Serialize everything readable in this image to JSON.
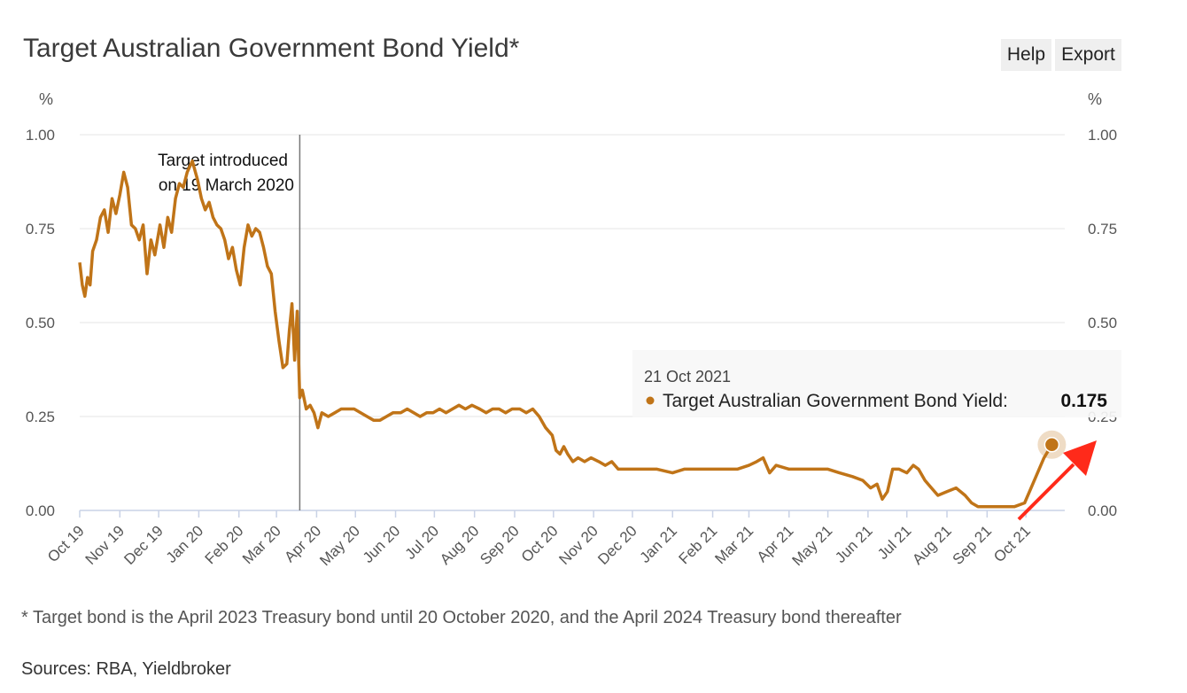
{
  "header": {
    "title": "Target Australian Government Bond Yield*"
  },
  "toolbar": {
    "help_label": "Help",
    "export_label": "Export"
  },
  "footer": {
    "note": "* Target bond is the April 2023 Treasury bond until 20 October 2020, and the April 2024 Treasury bond thereafter",
    "sources": "Sources: RBA, Yieldbroker"
  },
  "colors": {
    "series": "#c07418",
    "grid": "#e4e4e4",
    "axis": "#c9d2e6",
    "vline": "#777777",
    "arrow": "#ff2a1a"
  },
  "chart_data": {
    "type": "line",
    "title": "Target Australian Government Bond Yield*",
    "ylabel_left": "%",
    "ylabel_right": "%",
    "ylim": [
      0,
      1
    ],
    "yticks": [
      0,
      0.25,
      0.5,
      0.75,
      1
    ],
    "ytick_labels": [
      "0.00",
      "0.25",
      "0.50",
      "0.75",
      "1.00"
    ],
    "grid": true,
    "xlim": [
      "2019-10-01",
      "2021-10-31"
    ],
    "x_ticks": [
      {
        "date": "2019-10-01",
        "label": "Oct 19"
      },
      {
        "date": "2019-11-01",
        "label": "Nov 19"
      },
      {
        "date": "2019-12-01",
        "label": "Dec 19"
      },
      {
        "date": "2020-01-01",
        "label": "Jan 20"
      },
      {
        "date": "2020-02-01",
        "label": "Feb 20"
      },
      {
        "date": "2020-03-01",
        "label": "Mar 20"
      },
      {
        "date": "2020-04-01",
        "label": "Apr 20"
      },
      {
        "date": "2020-05-01",
        "label": "May 20"
      },
      {
        "date": "2020-06-01",
        "label": "Jun 20"
      },
      {
        "date": "2020-07-01",
        "label": "Jul 20"
      },
      {
        "date": "2020-08-01",
        "label": "Aug 20"
      },
      {
        "date": "2020-09-01",
        "label": "Sep 20"
      },
      {
        "date": "2020-10-01",
        "label": "Oct 20"
      },
      {
        "date": "2020-11-01",
        "label": "Nov 20"
      },
      {
        "date": "2020-12-01",
        "label": "Dec 20"
      },
      {
        "date": "2021-01-01",
        "label": "Jan 21"
      },
      {
        "date": "2021-02-01",
        "label": "Feb 21"
      },
      {
        "date": "2021-03-01",
        "label": "Mar 21"
      },
      {
        "date": "2021-04-01",
        "label": "Apr 21"
      },
      {
        "date": "2021-05-01",
        "label": "May 21"
      },
      {
        "date": "2021-06-01",
        "label": "Jun 21"
      },
      {
        "date": "2021-07-01",
        "label": "Jul 21"
      },
      {
        "date": "2021-08-01",
        "label": "Aug 21"
      },
      {
        "date": "2021-09-01",
        "label": "Sep 21"
      },
      {
        "date": "2021-10-01",
        "label": "Oct 21"
      }
    ],
    "annotation": {
      "date": "2020-03-19",
      "lines": [
        "Target introduced",
        "on 19 March 2020"
      ]
    },
    "tooltip": {
      "date_label": "21 Oct 2021",
      "series_label": "Target Australian Government Bond Yield:",
      "value_label": "0.175"
    },
    "highlight_point": {
      "date": "2021-10-21",
      "value": 0.175
    },
    "series": [
      {
        "name": "Target Australian Government Bond Yield",
        "points": [
          [
            "2019-10-01",
            0.66
          ],
          [
            "2019-10-03",
            0.6
          ],
          [
            "2019-10-05",
            0.57
          ],
          [
            "2019-10-07",
            0.62
          ],
          [
            "2019-10-09",
            0.6
          ],
          [
            "2019-10-11",
            0.69
          ],
          [
            "2019-10-14",
            0.72
          ],
          [
            "2019-10-17",
            0.78
          ],
          [
            "2019-10-20",
            0.8
          ],
          [
            "2019-10-23",
            0.74
          ],
          [
            "2019-10-26",
            0.83
          ],
          [
            "2019-10-29",
            0.79
          ],
          [
            "2019-11-01",
            0.84
          ],
          [
            "2019-11-04",
            0.9
          ],
          [
            "2019-11-07",
            0.86
          ],
          [
            "2019-11-10",
            0.76
          ],
          [
            "2019-11-13",
            0.75
          ],
          [
            "2019-11-16",
            0.72
          ],
          [
            "2019-11-19",
            0.76
          ],
          [
            "2019-11-22",
            0.63
          ],
          [
            "2019-11-25",
            0.72
          ],
          [
            "2019-11-28",
            0.68
          ],
          [
            "2019-12-02",
            0.76
          ],
          [
            "2019-12-05",
            0.7
          ],
          [
            "2019-12-08",
            0.78
          ],
          [
            "2019-12-11",
            0.74
          ],
          [
            "2019-12-14",
            0.83
          ],
          [
            "2019-12-17",
            0.87
          ],
          [
            "2019-12-20",
            0.86
          ],
          [
            "2019-12-23",
            0.9
          ],
          [
            "2019-12-27",
            0.93
          ],
          [
            "2019-12-31",
            0.88
          ],
          [
            "2020-01-03",
            0.83
          ],
          [
            "2020-01-06",
            0.8
          ],
          [
            "2020-01-09",
            0.82
          ],
          [
            "2020-01-12",
            0.78
          ],
          [
            "2020-01-15",
            0.76
          ],
          [
            "2020-01-18",
            0.75
          ],
          [
            "2020-01-21",
            0.72
          ],
          [
            "2020-01-24",
            0.67
          ],
          [
            "2020-01-27",
            0.7
          ],
          [
            "2020-01-30",
            0.64
          ],
          [
            "2020-02-02",
            0.6
          ],
          [
            "2020-02-05",
            0.7
          ],
          [
            "2020-02-08",
            0.76
          ],
          [
            "2020-02-11",
            0.73
          ],
          [
            "2020-02-14",
            0.75
          ],
          [
            "2020-02-17",
            0.74
          ],
          [
            "2020-02-20",
            0.7
          ],
          [
            "2020-02-23",
            0.65
          ],
          [
            "2020-02-26",
            0.63
          ],
          [
            "2020-02-29",
            0.53
          ],
          [
            "2020-03-03",
            0.45
          ],
          [
            "2020-03-06",
            0.38
          ],
          [
            "2020-03-09",
            0.39
          ],
          [
            "2020-03-11",
            0.48
          ],
          [
            "2020-03-13",
            0.55
          ],
          [
            "2020-03-15",
            0.4
          ],
          [
            "2020-03-17",
            0.53
          ],
          [
            "2020-03-19",
            0.3
          ],
          [
            "2020-03-21",
            0.32
          ],
          [
            "2020-03-24",
            0.27
          ],
          [
            "2020-03-27",
            0.28
          ],
          [
            "2020-03-30",
            0.26
          ],
          [
            "2020-04-02",
            0.22
          ],
          [
            "2020-04-05",
            0.26
          ],
          [
            "2020-04-10",
            0.25
          ],
          [
            "2020-04-15",
            0.26
          ],
          [
            "2020-04-20",
            0.27
          ],
          [
            "2020-04-25",
            0.27
          ],
          [
            "2020-04-30",
            0.27
          ],
          [
            "2020-05-05",
            0.26
          ],
          [
            "2020-05-10",
            0.25
          ],
          [
            "2020-05-15",
            0.24
          ],
          [
            "2020-05-20",
            0.24
          ],
          [
            "2020-05-25",
            0.25
          ],
          [
            "2020-05-30",
            0.26
          ],
          [
            "2020-06-05",
            0.26
          ],
          [
            "2020-06-10",
            0.27
          ],
          [
            "2020-06-15",
            0.26
          ],
          [
            "2020-06-20",
            0.25
          ],
          [
            "2020-06-25",
            0.26
          ],
          [
            "2020-06-30",
            0.26
          ],
          [
            "2020-07-05",
            0.27
          ],
          [
            "2020-07-10",
            0.26
          ],
          [
            "2020-07-15",
            0.27
          ],
          [
            "2020-07-20",
            0.28
          ],
          [
            "2020-07-25",
            0.27
          ],
          [
            "2020-07-30",
            0.28
          ],
          [
            "2020-08-05",
            0.27
          ],
          [
            "2020-08-10",
            0.26
          ],
          [
            "2020-08-15",
            0.27
          ],
          [
            "2020-08-20",
            0.27
          ],
          [
            "2020-08-25",
            0.26
          ],
          [
            "2020-08-30",
            0.27
          ],
          [
            "2020-09-05",
            0.27
          ],
          [
            "2020-09-10",
            0.26
          ],
          [
            "2020-09-15",
            0.27
          ],
          [
            "2020-09-20",
            0.25
          ],
          [
            "2020-09-25",
            0.22
          ],
          [
            "2020-09-30",
            0.2
          ],
          [
            "2020-10-03",
            0.16
          ],
          [
            "2020-10-06",
            0.15
          ],
          [
            "2020-10-09",
            0.17
          ],
          [
            "2020-10-12",
            0.15
          ],
          [
            "2020-10-16",
            0.13
          ],
          [
            "2020-10-20",
            0.14
          ],
          [
            "2020-10-25",
            0.13
          ],
          [
            "2020-10-30",
            0.14
          ],
          [
            "2020-11-05",
            0.13
          ],
          [
            "2020-11-10",
            0.12
          ],
          [
            "2020-11-15",
            0.13
          ],
          [
            "2020-11-20",
            0.11
          ],
          [
            "2020-11-25",
            0.11
          ],
          [
            "2020-12-01",
            0.11
          ],
          [
            "2020-12-10",
            0.11
          ],
          [
            "2020-12-20",
            0.11
          ],
          [
            "2021-01-01",
            0.1
          ],
          [
            "2021-01-10",
            0.11
          ],
          [
            "2021-01-20",
            0.11
          ],
          [
            "2021-02-01",
            0.11
          ],
          [
            "2021-02-10",
            0.11
          ],
          [
            "2021-02-20",
            0.11
          ],
          [
            "2021-03-01",
            0.12
          ],
          [
            "2021-03-07",
            0.13
          ],
          [
            "2021-03-12",
            0.14
          ],
          [
            "2021-03-17",
            0.1
          ],
          [
            "2021-03-22",
            0.12
          ],
          [
            "2021-04-01",
            0.11
          ],
          [
            "2021-04-10",
            0.11
          ],
          [
            "2021-04-20",
            0.11
          ],
          [
            "2021-05-01",
            0.11
          ],
          [
            "2021-05-10",
            0.1
          ],
          [
            "2021-05-20",
            0.09
          ],
          [
            "2021-05-28",
            0.08
          ],
          [
            "2021-06-03",
            0.06
          ],
          [
            "2021-06-08",
            0.07
          ],
          [
            "2021-06-12",
            0.03
          ],
          [
            "2021-06-16",
            0.05
          ],
          [
            "2021-06-20",
            0.11
          ],
          [
            "2021-06-25",
            0.11
          ],
          [
            "2021-07-01",
            0.1
          ],
          [
            "2021-07-06",
            0.12
          ],
          [
            "2021-07-10",
            0.11
          ],
          [
            "2021-07-15",
            0.08
          ],
          [
            "2021-07-20",
            0.06
          ],
          [
            "2021-07-25",
            0.04
          ],
          [
            "2021-08-01",
            0.05
          ],
          [
            "2021-08-08",
            0.06
          ],
          [
            "2021-08-15",
            0.04
          ],
          [
            "2021-08-20",
            0.02
          ],
          [
            "2021-08-25",
            0.01
          ],
          [
            "2021-09-01",
            0.01
          ],
          [
            "2021-09-08",
            0.01
          ],
          [
            "2021-09-15",
            0.01
          ],
          [
            "2021-09-22",
            0.01
          ],
          [
            "2021-09-30",
            0.02
          ],
          [
            "2021-10-05",
            0.06
          ],
          [
            "2021-10-10",
            0.1
          ],
          [
            "2021-10-15",
            0.14
          ],
          [
            "2021-10-21",
            0.175
          ]
        ]
      }
    ]
  }
}
